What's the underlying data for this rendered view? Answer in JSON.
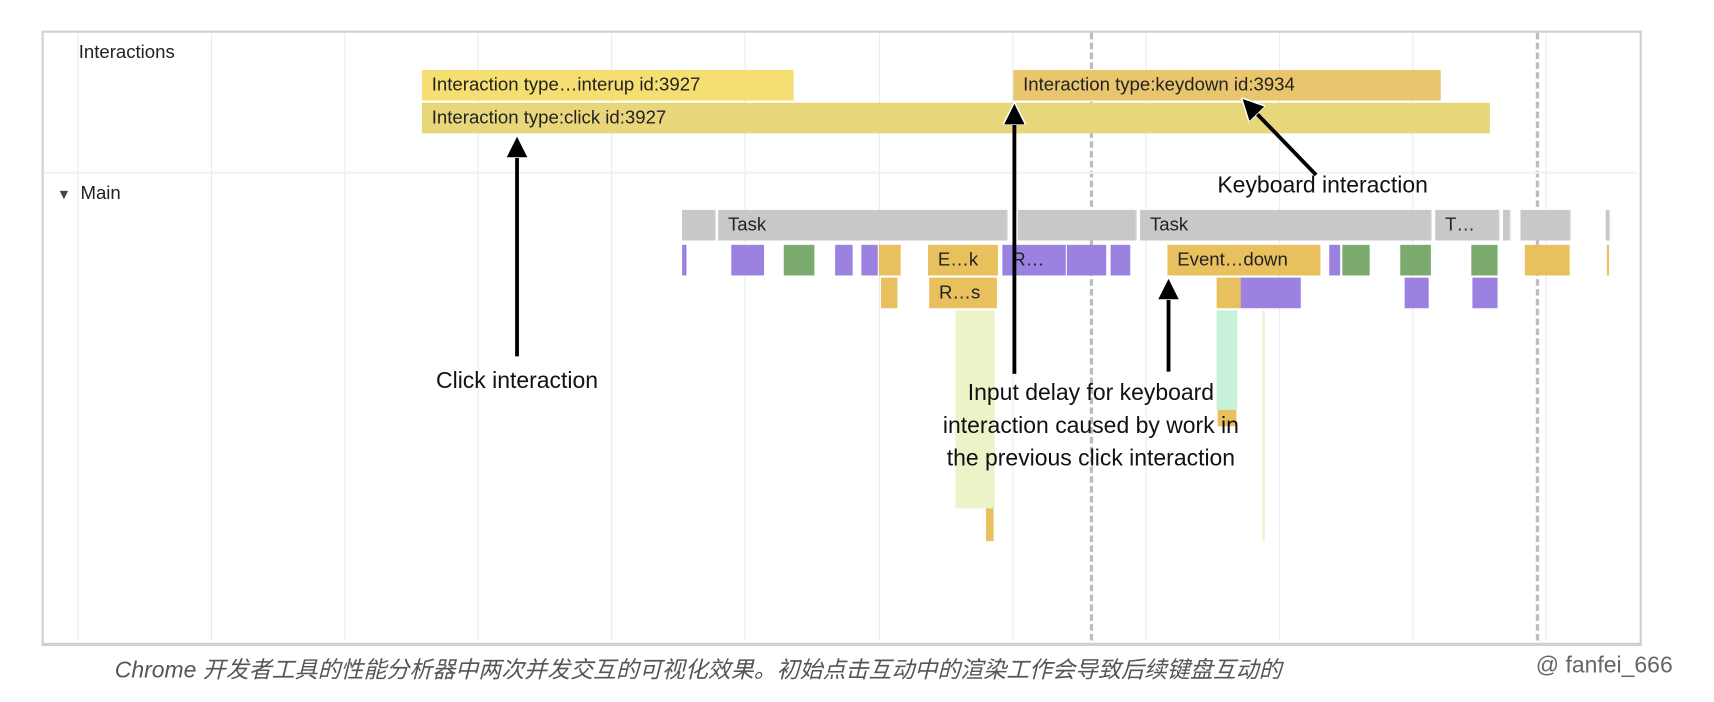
{
  "tracks": {
    "interactions_label": "Interactions",
    "main_label": "Main",
    "main_toggle_icon": "triangle-down-icon"
  },
  "interactions": [
    {
      "label": "Interaction type…interup id:3927",
      "color": "#f6df72"
    },
    {
      "label": "Interaction type:click id:3927",
      "color": "#e8d67a"
    },
    {
      "label": "Interaction type:keydown id:3934",
      "color": "#e9c66e"
    }
  ],
  "main_blocks": {
    "task_labels": [
      "Task",
      "Task",
      "T…"
    ],
    "event_labels": [
      "E…k",
      "R…",
      "Event…down",
      "R…s"
    ]
  },
  "colors": {
    "task": "#c8c8c8",
    "scripting": "#e8c05e",
    "rendering": "#9b82e0",
    "painting": "#7aab6c",
    "pale_yellow": "#eef2c9",
    "mint": "#c8f1da"
  },
  "annotations": {
    "click": "Click interaction",
    "keyboard": "Keyboard interaction",
    "input_delay": [
      "Input delay for keyboard",
      "interaction caused by work in",
      "the previous click interaction"
    ]
  },
  "caption": "Chrome 开发者工具的性能分析器中两次并发交互的可视化效果。初始点击互动中的渲染工作会导致后续键盘互动的",
  "watermark": "@ fanfei_666"
}
